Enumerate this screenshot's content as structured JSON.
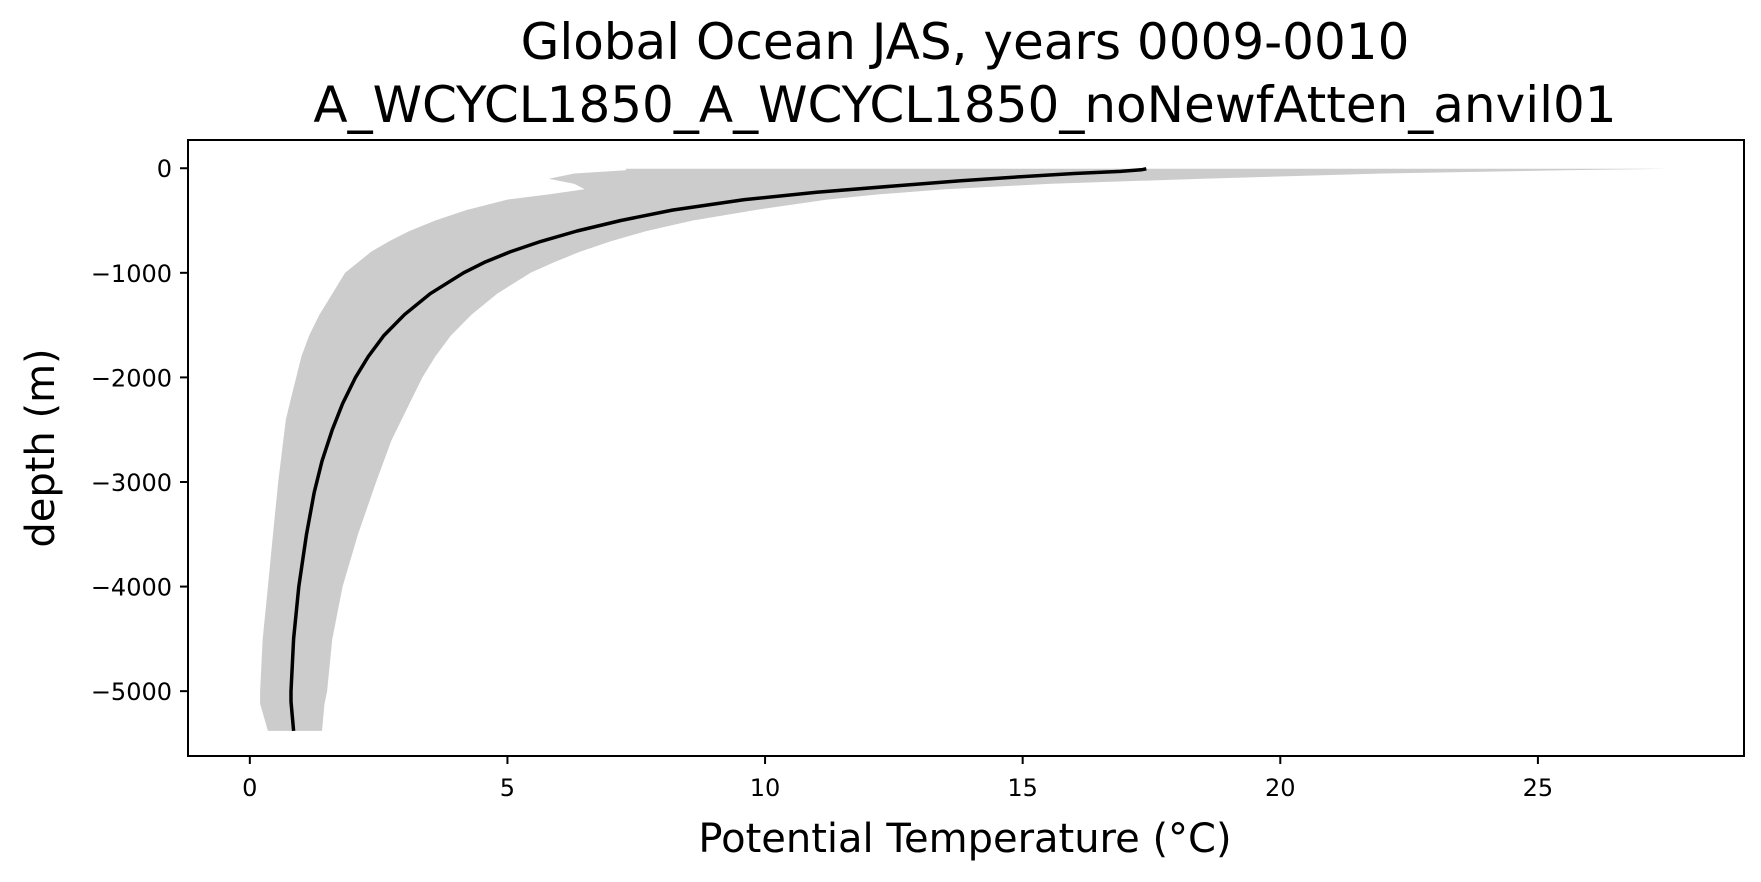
{
  "chart_data": {
    "type": "area",
    "title_line1": "Global Ocean JAS, years 0009-0010",
    "title_line2": "A_WCYCL1850_A_WCYCL1850_noNewfAtten_anvil01",
    "xlabel": "Potential Temperature (°C)",
    "ylabel": "depth (m)",
    "xlim": [
      -1.2,
      29.0
    ],
    "ylim": [
      -5620,
      270
    ],
    "xticks": [
      0,
      5,
      10,
      15,
      20,
      25
    ],
    "yticks": [
      0,
      -1000,
      -2000,
      -3000,
      -4000,
      -5000
    ],
    "xtick_labels": [
      "0",
      "5",
      "10",
      "15",
      "20",
      "25"
    ],
    "ytick_labels": [
      "0",
      "−1000",
      "−2000",
      "−3000",
      "−4000",
      "−5000"
    ],
    "grid": false,
    "colors": {
      "line": "#000000",
      "band": "#cccccc"
    },
    "series": [
      {
        "type": "line",
        "depth": [
          -5,
          -15,
          -30,
          -50,
          -80,
          -120,
          -170,
          -230,
          -300,
          -400,
          -500,
          -600,
          -700,
          -800,
          -900,
          -1000,
          -1200,
          -1400,
          -1600,
          -1800,
          -2000,
          -2250,
          -2500,
          -2800,
          -3100,
          -3500,
          -4000,
          -4500,
          -5000,
          -5100,
          -5380
        ],
        "values": [
          17.4,
          17.3,
          16.9,
          16.0,
          15.0,
          13.8,
          12.5,
          11.0,
          9.6,
          8.2,
          7.2,
          6.35,
          5.65,
          5.05,
          4.55,
          4.15,
          3.5,
          3.0,
          2.6,
          2.3,
          2.05,
          1.8,
          1.6,
          1.4,
          1.25,
          1.1,
          0.95,
          0.85,
          0.8,
          0.8,
          0.85
        ]
      },
      {
        "type": "band",
        "depth": [
          -5,
          -20,
          -50,
          -100,
          -150,
          -200,
          -250,
          -300,
          -400,
          -500,
          -600,
          -700,
          -800,
          -900,
          -1000,
          -1200,
          -1400,
          -1600,
          -1800,
          -2000,
          -2200,
          -2400,
          -2600,
          -3000,
          -3500,
          -4000,
          -4500,
          -5000,
          -5120,
          -5380
        ],
        "lower": [
          7.3,
          7.3,
          6.3,
          5.8,
          6.3,
          6.5,
          5.8,
          5.0,
          4.2,
          3.6,
          3.1,
          2.7,
          2.35,
          2.1,
          1.85,
          1.6,
          1.35,
          1.15,
          1.0,
          0.9,
          0.8,
          0.7,
          0.65,
          0.55,
          0.45,
          0.35,
          0.25,
          0.2,
          0.2,
          0.35
        ],
        "upper": [
          27.5,
          25.5,
          22.0,
          18.5,
          15.5,
          13.5,
          12.2,
          11.2,
          9.8,
          8.6,
          7.7,
          7.0,
          6.4,
          5.9,
          5.45,
          4.8,
          4.3,
          3.9,
          3.6,
          3.35,
          3.15,
          2.95,
          2.75,
          2.45,
          2.1,
          1.8,
          1.6,
          1.5,
          1.45,
          1.4
        ]
      }
    ]
  }
}
